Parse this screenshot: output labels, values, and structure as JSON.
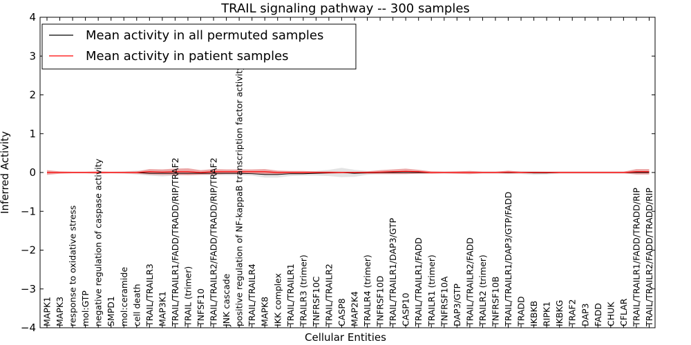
{
  "chart_data": {
    "type": "line",
    "title": "TRAIL signaling pathway -- 300 samples",
    "xlabel": "Cellular Entities",
    "ylabel": "Inferred Activity",
    "ylim": [
      -4,
      4
    ],
    "yticks": [
      "4",
      "3",
      "2",
      "1",
      "0",
      "−1",
      "−2",
      "−3",
      "−4"
    ],
    "ytick_values": [
      4,
      3,
      2,
      1,
      0,
      -1,
      -2,
      -3,
      -4
    ],
    "legend_position": "top-left",
    "categories": [
      "MAPK1",
      "MAPK3",
      "response to oxidative stress",
      "mol:GTP",
      "negative regulation of caspase activity",
      "SMPD1",
      "mol:ceramide",
      "cell death",
      "TRAIL/TRAILR3",
      "MAP3K1",
      "TRAIL/TRAILR1/FADD/TRADD/RIP/TRAF2",
      "TRAIL (trimer)",
      "TNFSF10",
      "TRAIL/TRAILR2/FADD/TRADD/RIP/TRAF2",
      "JNK cascade",
      "positive regulation of NF-kappaB transcription factor activity",
      "TRAIL/TRAILR4",
      "MAPK8",
      "IKK complex",
      "TRAIL/TRAILR1",
      "TRAILR3 (trimer)",
      "TNFRSF10C",
      "TRAIL/TRAILR2",
      "CASP8",
      "MAP2K4",
      "TRAILR4 (trimer)",
      "TNFRSF10D",
      "TRAIL/TRAILR1/DAP3/GTP",
      "CASP10",
      "TRAIL/TRAILR1/FADD",
      "TRAILR1 (trimer)",
      "TNFRSF10A",
      "DAP3/GTP",
      "TRAIL/TRAILR2/FADD",
      "TRAILR2 (trimer)",
      "TNFRSF10B",
      "TRAIL/TRAILR1/DAP3/GTP/FADD",
      "TRADD",
      "IKBKB",
      "RIPK1",
      "IKBKG",
      "TRAF2",
      "DAP3",
      "FADD",
      "CHUK",
      "CFLAR",
      "TRAIL/TRAILR1/FADD/TRADD/RIP",
      "TRAIL/TRAILR2/FADD/TRADD/RIP"
    ],
    "series": [
      {
        "name": "Mean activity in all permuted samples",
        "color": "#000000",
        "band_color": "#cccccc",
        "values": [
          0,
          0,
          0,
          0,
          0,
          0,
          0,
          0,
          -0.02,
          -0.02,
          -0.02,
          -0.02,
          -0.02,
          -0.02,
          -0.02,
          -0.02,
          -0.03,
          -0.05,
          -0.05,
          -0.03,
          -0.03,
          -0.02,
          -0.01,
          0,
          -0.02,
          -0.01,
          0,
          0,
          0,
          0,
          0,
          0,
          0,
          0,
          0,
          0,
          0,
          0,
          -0.01,
          -0.01,
          0,
          0,
          0,
          0,
          0,
          0,
          0,
          0
        ],
        "spread": [
          0.02,
          0.02,
          0.02,
          0.02,
          0.02,
          0.02,
          0.03,
          0.05,
          0.06,
          0.08,
          0.06,
          0.04,
          0.04,
          0.05,
          0.05,
          0.05,
          0.05,
          0.08,
          0.08,
          0.06,
          0.05,
          0.06,
          0.08,
          0.12,
          0.09,
          0.05,
          0.04,
          0.04,
          0.04,
          0.03,
          0.03,
          0.03,
          0.03,
          0.04,
          0.03,
          0.03,
          0.03,
          0.04,
          0.05,
          0.04,
          0.03,
          0.03,
          0.03,
          0.03,
          0.03,
          0.03,
          0.04,
          0.04
        ]
      },
      {
        "name": "Mean activity in patient samples",
        "color": "#ff0000",
        "band_color": "#e58c8c",
        "values": [
          0,
          0,
          0,
          0,
          0,
          0,
          0,
          0,
          0.02,
          0.01,
          0.02,
          0.02,
          0,
          0.02,
          0.02,
          0.02,
          0.02,
          0.02,
          0,
          0,
          0,
          0,
          0,
          0,
          0,
          0,
          0.01,
          0.02,
          0.03,
          0.02,
          0,
          0,
          0,
          0,
          0,
          0,
          0.01,
          0,
          0,
          0,
          0,
          0,
          0,
          0,
          0,
          0,
          0.02,
          0.02
        ],
        "spread": [
          0.06,
          0.03,
          0.02,
          0.02,
          0.03,
          0.02,
          0.02,
          0.03,
          0.07,
          0.07,
          0.08,
          0.09,
          0.06,
          0.07,
          0.06,
          0.06,
          0.06,
          0.07,
          0.05,
          0.04,
          0.04,
          0.03,
          0.03,
          0.02,
          0.02,
          0.03,
          0.05,
          0.06,
          0.07,
          0.05,
          0.03,
          0.02,
          0.03,
          0.04,
          0.02,
          0.02,
          0.04,
          0.02,
          0.02,
          0.02,
          0.02,
          0.02,
          0.02,
          0.02,
          0.02,
          0.02,
          0.07,
          0.07
        ]
      }
    ]
  }
}
